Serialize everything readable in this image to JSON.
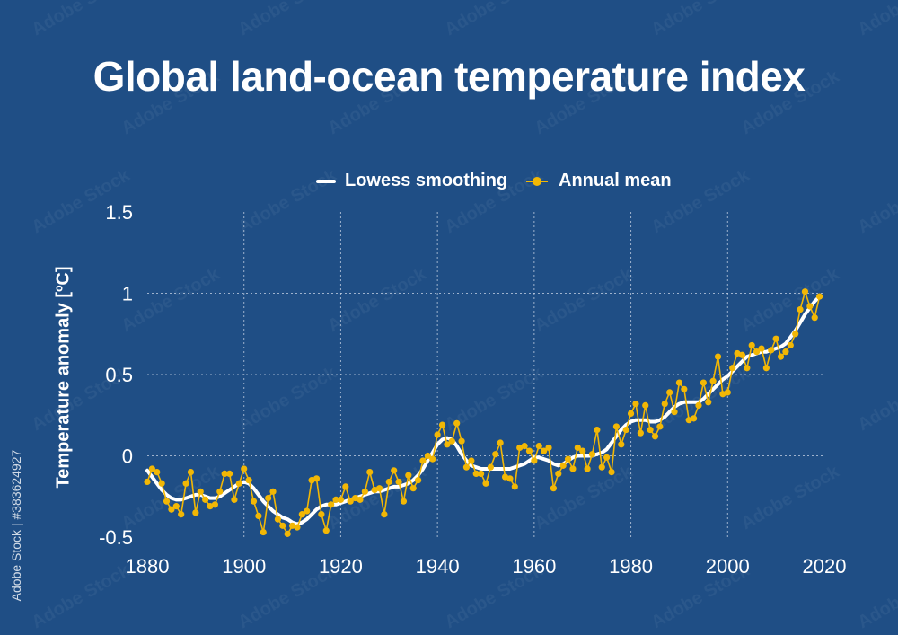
{
  "page": {
    "title": "Global land-ocean temperature index",
    "watermark_text": "Adobe Stock | #383624927"
  },
  "chart_data": {
    "type": "line",
    "title": "Global land-ocean temperature index",
    "xlabel": "",
    "ylabel": "Temperature anomaly [ºC]",
    "xlim": [
      1880,
      2020
    ],
    "ylim": [
      -0.5,
      1.5
    ],
    "x_ticks": [
      1880,
      1900,
      1920,
      1940,
      1960,
      1980,
      2000,
      2020
    ],
    "y_ticks": [
      -0.5,
      0,
      0.5,
      1,
      1.5
    ],
    "y_tick_labels": [
      "-0.5",
      "0",
      "0.5",
      "1",
      "1.5"
    ],
    "grid": true,
    "legend_position": "top",
    "colors": {
      "smoothing": "#ffffff",
      "annual": "#f2b705",
      "grid": "#c9d4e6",
      "background": "#1f4e85"
    },
    "x": [
      1880,
      1881,
      1882,
      1883,
      1884,
      1885,
      1886,
      1887,
      1888,
      1889,
      1890,
      1891,
      1892,
      1893,
      1894,
      1895,
      1896,
      1897,
      1898,
      1899,
      1900,
      1901,
      1902,
      1903,
      1904,
      1905,
      1906,
      1907,
      1908,
      1909,
      1910,
      1911,
      1912,
      1913,
      1914,
      1915,
      1916,
      1917,
      1918,
      1919,
      1920,
      1921,
      1922,
      1923,
      1924,
      1925,
      1926,
      1927,
      1928,
      1929,
      1930,
      1931,
      1932,
      1933,
      1934,
      1935,
      1936,
      1937,
      1938,
      1939,
      1940,
      1941,
      1942,
      1943,
      1944,
      1945,
      1946,
      1947,
      1948,
      1949,
      1950,
      1951,
      1952,
      1953,
      1954,
      1955,
      1956,
      1957,
      1958,
      1959,
      1960,
      1961,
      1962,
      1963,
      1964,
      1965,
      1966,
      1967,
      1968,
      1969,
      1970,
      1971,
      1972,
      1973,
      1974,
      1975,
      1976,
      1977,
      1978,
      1979,
      1980,
      1981,
      1982,
      1983,
      1984,
      1985,
      1986,
      1987,
      1988,
      1989,
      1990,
      1991,
      1992,
      1993,
      1994,
      1995,
      1996,
      1997,
      1998,
      1999,
      2000,
      2001,
      2002,
      2003,
      2004,
      2005,
      2006,
      2007,
      2008,
      2009,
      2010,
      2011,
      2012,
      2013,
      2014,
      2015,
      2016,
      2017,
      2018,
      2019
    ],
    "series": [
      {
        "name": "Lowess smoothing",
        "values": [
          -0.09,
          -0.13,
          -0.17,
          -0.21,
          -0.24,
          -0.26,
          -0.27,
          -0.27,
          -0.26,
          -0.25,
          -0.24,
          -0.24,
          -0.25,
          -0.26,
          -0.26,
          -0.25,
          -0.23,
          -0.21,
          -0.19,
          -0.17,
          -0.16,
          -0.17,
          -0.2,
          -0.24,
          -0.28,
          -0.31,
          -0.34,
          -0.36,
          -0.38,
          -0.39,
          -0.41,
          -0.42,
          -0.41,
          -0.39,
          -0.36,
          -0.33,
          -0.31,
          -0.3,
          -0.3,
          -0.3,
          -0.29,
          -0.28,
          -0.27,
          -0.26,
          -0.25,
          -0.24,
          -0.23,
          -0.22,
          -0.22,
          -0.21,
          -0.2,
          -0.19,
          -0.19,
          -0.18,
          -0.17,
          -0.15,
          -0.12,
          -0.08,
          -0.03,
          0.02,
          0.07,
          0.1,
          0.11,
          0.1,
          0.06,
          0.01,
          -0.03,
          -0.06,
          -0.07,
          -0.08,
          -0.08,
          -0.08,
          -0.08,
          -0.08,
          -0.08,
          -0.08,
          -0.07,
          -0.06,
          -0.05,
          -0.03,
          -0.01,
          -0.01,
          -0.02,
          -0.03,
          -0.05,
          -0.06,
          -0.05,
          -0.03,
          -0.01,
          0,
          0,
          0,
          0,
          0.01,
          0.02,
          0.04,
          0.08,
          0.12,
          0.16,
          0.19,
          0.21,
          0.22,
          0.22,
          0.22,
          0.21,
          0.21,
          0.22,
          0.24,
          0.27,
          0.3,
          0.32,
          0.33,
          0.33,
          0.33,
          0.33,
          0.35,
          0.38,
          0.41,
          0.44,
          0.47,
          0.49,
          0.52,
          0.55,
          0.58,
          0.61,
          0.62,
          0.63,
          0.64,
          0.64,
          0.65,
          0.66,
          0.67,
          0.69,
          0.73,
          0.77,
          0.82,
          0.87,
          0.91,
          0.95,
          0.98
        ]
      },
      {
        "name": "Annual mean",
        "values": [
          -0.16,
          -0.08,
          -0.1,
          -0.17,
          -0.28,
          -0.33,
          -0.31,
          -0.36,
          -0.17,
          -0.1,
          -0.35,
          -0.22,
          -0.27,
          -0.31,
          -0.3,
          -0.22,
          -0.11,
          -0.11,
          -0.27,
          -0.17,
          -0.08,
          -0.15,
          -0.28,
          -0.37,
          -0.47,
          -0.26,
          -0.22,
          -0.39,
          -0.43,
          -0.48,
          -0.43,
          -0.44,
          -0.36,
          -0.34,
          -0.15,
          -0.14,
          -0.36,
          -0.46,
          -0.3,
          -0.27,
          -0.27,
          -0.19,
          -0.28,
          -0.26,
          -0.27,
          -0.22,
          -0.1,
          -0.21,
          -0.2,
          -0.36,
          -0.16,
          -0.09,
          -0.16,
          -0.28,
          -0.12,
          -0.2,
          -0.15,
          -0.03,
          0,
          -0.02,
          0.13,
          0.19,
          0.07,
          0.09,
          0.2,
          0.09,
          -0.07,
          -0.03,
          -0.11,
          -0.11,
          -0.17,
          -0.07,
          0.01,
          0.08,
          -0.13,
          -0.14,
          -0.19,
          0.05,
          0.06,
          0.03,
          -0.03,
          0.06,
          0.03,
          0.05,
          -0.2,
          -0.11,
          -0.06,
          -0.02,
          -0.08,
          0.05,
          0.03,
          -0.08,
          0.01,
          0.16,
          -0.07,
          -0.01,
          -0.1,
          0.18,
          0.07,
          0.16,
          0.26,
          0.32,
          0.14,
          0.31,
          0.16,
          0.12,
          0.18,
          0.32,
          0.39,
          0.27,
          0.45,
          0.41,
          0.22,
          0.23,
          0.31,
          0.45,
          0.33,
          0.46,
          0.61,
          0.38,
          0.39,
          0.54,
          0.63,
          0.62,
          0.54,
          0.68,
          0.64,
          0.66,
          0.54,
          0.65,
          0.72,
          0.61,
          0.64,
          0.68,
          0.75,
          0.9,
          1.01,
          0.92,
          0.85,
          0.98
        ]
      }
    ]
  }
}
